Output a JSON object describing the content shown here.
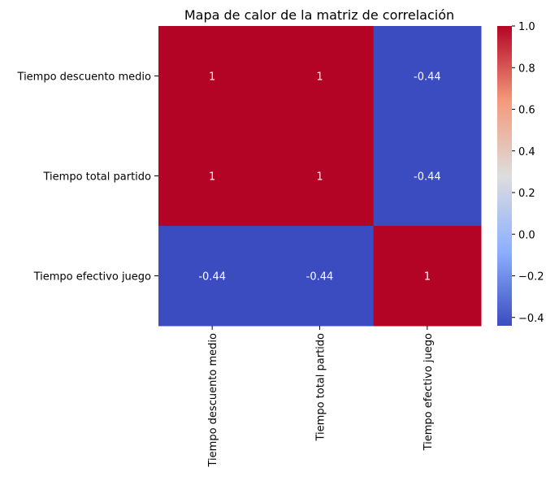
{
  "chart_data": {
    "type": "heatmap",
    "title": "Mapa de calor de la matriz de correlación",
    "row_labels": [
      "Tiempo descuento medio",
      "Tiempo total partido",
      "Tiempo efectivo juego"
    ],
    "col_labels": [
      "Tiempo descuento medio",
      "Tiempo total partido",
      "Tiempo efectivo juego"
    ],
    "values": [
      [
        1,
        1,
        -0.44
      ],
      [
        1,
        1,
        -0.44
      ],
      [
        -0.44,
        -0.44,
        1
      ]
    ],
    "annotations": [
      [
        "1",
        "1",
        "-0.44"
      ],
      [
        "1",
        "1",
        "-0.44"
      ],
      [
        "-0.44",
        "-0.44",
        "1"
      ]
    ],
    "colormap": "coolwarm",
    "colorbar": {
      "vmin": -0.44,
      "vmax": 1.0,
      "ticks": [
        1.0,
        0.8,
        0.6,
        0.4,
        0.2,
        0.0,
        -0.2,
        -0.4
      ],
      "tick_labels": [
        "1.0",
        "0.8",
        "0.6",
        "0.4",
        "0.2",
        "0.0",
        "−0.2",
        "−0.4"
      ]
    },
    "xlabel": "",
    "ylabel": "",
    "legend": "colorbar-right"
  }
}
